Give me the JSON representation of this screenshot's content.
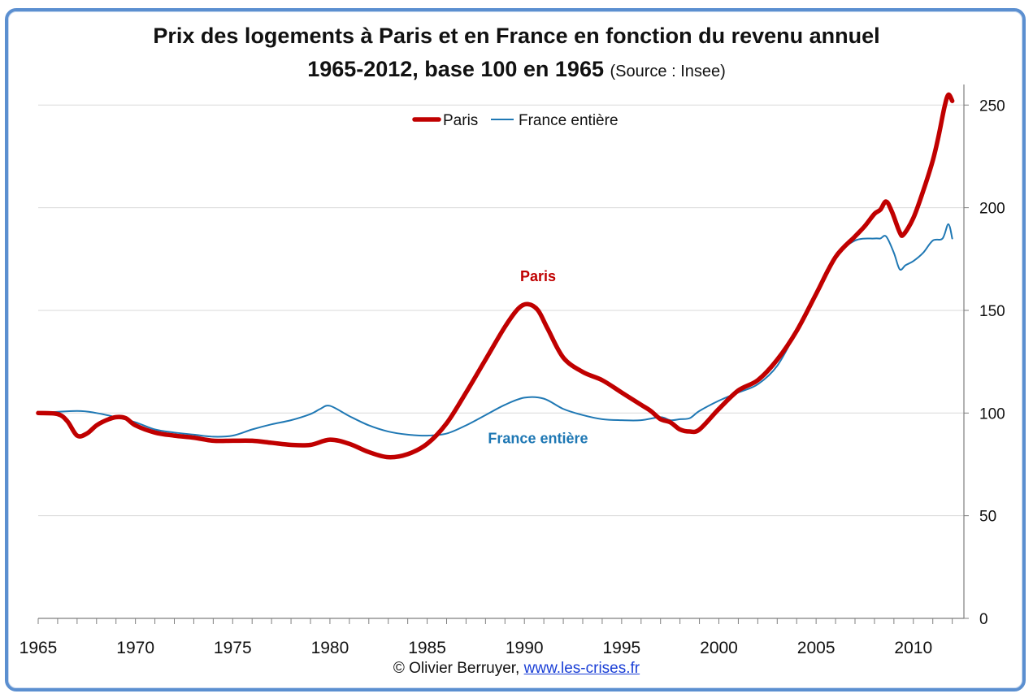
{
  "title": {
    "line1": "Prix des logements à Paris et en France en fonction du revenu annuel",
    "line2": "1965-2012, base 100 en 1965",
    "source": "(Source : Insee)"
  },
  "footer": {
    "credit": "© Olivier Berruyer,",
    "link": "www.les-crises.fr"
  },
  "colors": {
    "paris": "#c00000",
    "france": "#1f78b4",
    "grid": "#d9d9d9",
    "axis": "#7f7f7f"
  },
  "chart_data": {
    "type": "line",
    "title": "Prix des logements à Paris et en France en fonction du revenu annuel",
    "xlim": [
      1965,
      2012.6
    ],
    "ylim": [
      0,
      260
    ],
    "x_ticks": [
      "1965",
      "1970",
      "1975",
      "1980",
      "1985",
      "1990",
      "1995",
      "2000",
      "2005",
      "2010"
    ],
    "y_ticks": [
      "0",
      "50",
      "100",
      "150",
      "200",
      "250"
    ],
    "grid": true,
    "y_axis_side": "right",
    "legend_position": "top-center",
    "legend": [
      "Paris",
      "France entière"
    ],
    "annotations": [
      {
        "text": "Paris",
        "x": 1990.7,
        "y": 167,
        "series": "Paris"
      },
      {
        "text": "France entière",
        "x": 1990.7,
        "y": 88,
        "series": "France entière"
      }
    ],
    "series": [
      {
        "name": "Paris",
        "x": [
          1965,
          1966,
          1966.5,
          1967,
          1967.5,
          1968,
          1968.5,
          1969,
          1969.5,
          1970,
          1971,
          1972,
          1973,
          1974,
          1975,
          1976,
          1977,
          1978,
          1979,
          1980,
          1981,
          1982,
          1983,
          1984,
          1985,
          1986,
          1987,
          1988,
          1989,
          1989.7,
          1990.2,
          1990.7,
          1991.2,
          1992,
          1993,
          1994,
          1995,
          1996,
          1996.5,
          1997,
          1997.5,
          1998,
          1998.5,
          1999,
          2000,
          2001,
          2002,
          2003,
          2004,
          2005,
          2006,
          2007,
          2007.5,
          2008,
          2008.3,
          2008.6,
          2008.9,
          2009.3,
          2009.5,
          2010,
          2010.5,
          2011,
          2011.3,
          2011.6,
          2011.8,
          2012
        ],
        "y": [
          100,
          99.5,
          96,
          89,
          90,
          94,
          96.5,
          98,
          97.5,
          94,
          90.5,
          89,
          88,
          86.5,
          86.5,
          86.5,
          85.5,
          84.5,
          84.5,
          87,
          85,
          81,
          78.5,
          80,
          85,
          95,
          110,
          126,
          142,
          151,
          153,
          150,
          141,
          127,
          120,
          116,
          110,
          104,
          101,
          97,
          95.5,
          92,
          91,
          92,
          102,
          111,
          116,
          126,
          140,
          158,
          176,
          186,
          191,
          197,
          199,
          203,
          198,
          188,
          187,
          195,
          208,
          223,
          235,
          249,
          255,
          252
        ]
      },
      {
        "name": "France entière",
        "x": [
          1965,
          1967,
          1968,
          1969,
          1970,
          1971,
          1972,
          1973,
          1974,
          1975,
          1976,
          1977,
          1978,
          1979,
          1979.5,
          1980,
          1981,
          1982,
          1983,
          1984,
          1985,
          1986,
          1987,
          1988,
          1989,
          1990,
          1991,
          1992,
          1993,
          1994,
          1995,
          1996,
          1997,
          1997.5,
          1998,
          1998.5,
          1999,
          2000,
          2001,
          2002,
          2003,
          2004,
          2005,
          2006,
          2007,
          2008,
          2008.3,
          2008.6,
          2009,
          2009.3,
          2009.6,
          2010,
          2010.5,
          2011,
          2011.5,
          2011.8,
          2012
        ],
        "y": [
          100,
          101,
          100,
          98,
          95.5,
          92,
          90.5,
          89.5,
          88.5,
          89,
          92,
          94.5,
          96.5,
          99.5,
          102,
          103.5,
          98.5,
          94,
          91,
          89.5,
          89,
          90,
          94,
          99,
          104,
          107.5,
          107,
          102,
          99,
          97,
          96.5,
          96.5,
          98,
          96.5,
          97,
          97.5,
          101,
          106,
          110,
          114,
          123,
          140,
          159,
          176,
          184,
          185,
          185,
          186,
          178,
          170,
          172,
          174,
          178,
          184,
          185,
          192,
          185
        ]
      }
    ]
  }
}
